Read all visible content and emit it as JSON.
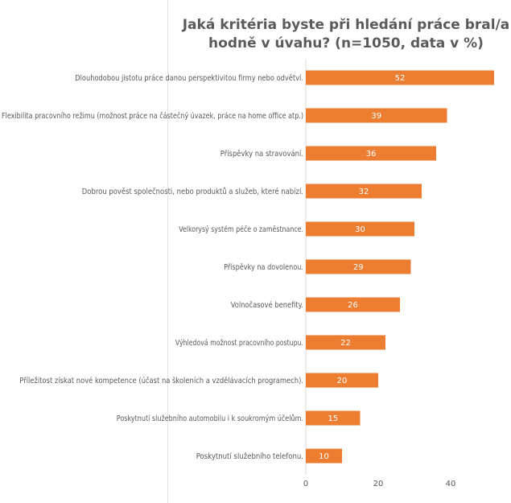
{
  "chart_data": {
    "type": "bar",
    "orientation": "horizontal",
    "title": "Jaká kritéria byste při hledání práce bral/a hodně v úvahu? (n=1050, data v %)",
    "categories": [
      "Dlouhodobou jistotu práce danou perspektivitou firmy nebo odvětví.",
      "Flexibilita pracovního režimu (možnost práce na částečný úvazek, práce na home office atp.)",
      "Příspěvky na stravování.",
      "Dobrou pověst společnosti, nebo produktů a služeb, které nabízí.",
      "Velkorysý systém péče o zaměstnance.",
      "Příspěvky na dovolenou.",
      "Volnočasové benefity.",
      "Výhledová možnost pracovního postupu.",
      "Příležitost získat nové kompetence (účast na školeních a vzdělávacích programech).",
      "Poskytnutí služebního automobilu i k soukromým účelům.",
      "Poskytnutí služebního telefonu."
    ],
    "values": [
      52,
      39,
      36,
      32,
      30,
      29,
      26,
      22,
      20,
      15,
      10
    ],
    "xticks": [
      0,
      20,
      40
    ],
    "xlim": [
      0,
      52
    ],
    "grid": false,
    "legend": "none",
    "bar_color": "#ED7D31",
    "label_color": "#ffffff"
  }
}
